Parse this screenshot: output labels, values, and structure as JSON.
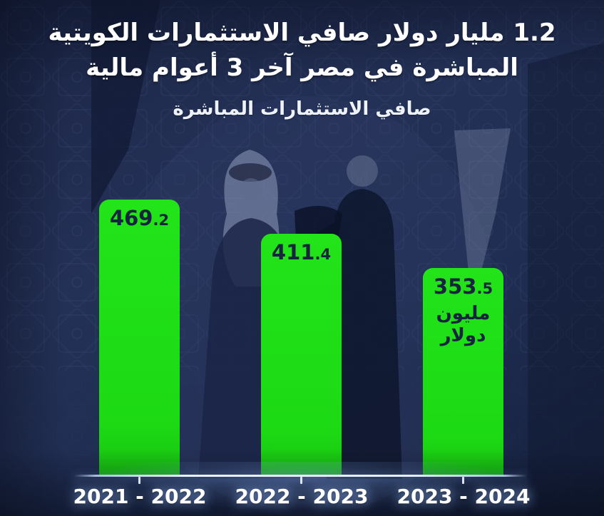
{
  "poster": {
    "title_line1": "1.2 مليار دولار صافي الاستثمارات الكويتية",
    "title_line2": "المباشرة في مصر آخر 3 أعوام مالية",
    "subtitle": "صافي الاستثمارات المباشرة"
  },
  "colors": {
    "background_navy": "#1e2c51",
    "bar_green": "#1cd914",
    "bar_text_navy": "#17233f",
    "axis_line": "#e4eeff",
    "title_text": "#ffffff"
  },
  "chart_data": {
    "type": "bar",
    "title": "صافي الاستثمارات المباشرة",
    "unit": "مليون دولار",
    "categories": [
      "2021 - 2022",
      "2022 - 2023",
      "2023 - 2024"
    ],
    "values": [
      469.2,
      411.4,
      353.5
    ],
    "xlabel": "",
    "ylabel": "",
    "ylim": [
      0,
      500
    ],
    "grid": false,
    "legend_position": "none",
    "bars": [
      {
        "int_part": "469",
        "dec_part": ".2",
        "category": "2021 - 2022"
      },
      {
        "int_part": "411",
        "dec_part": ".4",
        "category": "2022 - 2023"
      },
      {
        "int_part": "353",
        "dec_part": ".5",
        "category": "2023 - 2024",
        "unit_line1": "مليون",
        "unit_line2": "دولار"
      }
    ]
  }
}
